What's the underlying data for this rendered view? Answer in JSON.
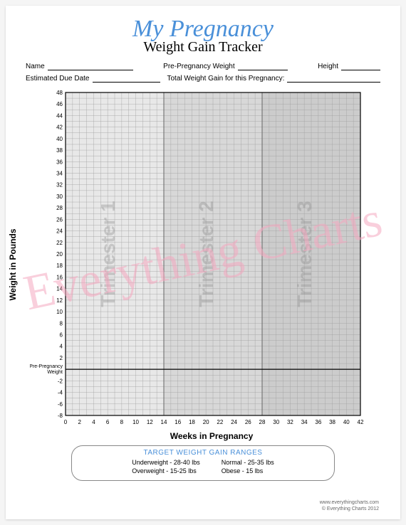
{
  "title": {
    "script": "My Pregnancy",
    "sub": "Weight Gain Tracker"
  },
  "fields": {
    "name": "Name",
    "prepreg": "Pre-Pregnancy Weight",
    "height": "Height",
    "due": "Estimated Due Date",
    "total": "Total Weight Gain for this Pregnancy:"
  },
  "chart": {
    "y_label": "Weight in Pounds",
    "x_label": "Weeks in Pregnancy",
    "y_min": -8,
    "y_max": 48,
    "y_tick_step": 2,
    "x_min": 0,
    "x_max": 42,
    "x_tick_step": 2,
    "pre_label1": "Pre-Pregnancy",
    "pre_label2": "Weight",
    "trimesters": [
      "Trimester 1",
      "Trimester 2",
      "Trimester 3"
    ],
    "trimester_bounds": [
      0,
      14,
      28,
      42
    ],
    "trimester_fills": [
      "#e8e8e8",
      "#d8d8d8",
      "#cccccc"
    ],
    "grid_color": "#a0a0a0",
    "axis_color": "#000000",
    "background": "#ffffff"
  },
  "legend": {
    "title": "TARGET WEIGHT GAIN RANGES",
    "col1_a": "Underweight - 28-40 lbs",
    "col1_b": "Overweight - 15-25 lbs",
    "col2_a": "Normal - 25-35 lbs",
    "col2_b": "Obese - 15 lbs"
  },
  "footer": {
    "url": "www.everythingcharts.com",
    "copy": "© Everything Charts 2012"
  },
  "watermark": "Everything Charts"
}
